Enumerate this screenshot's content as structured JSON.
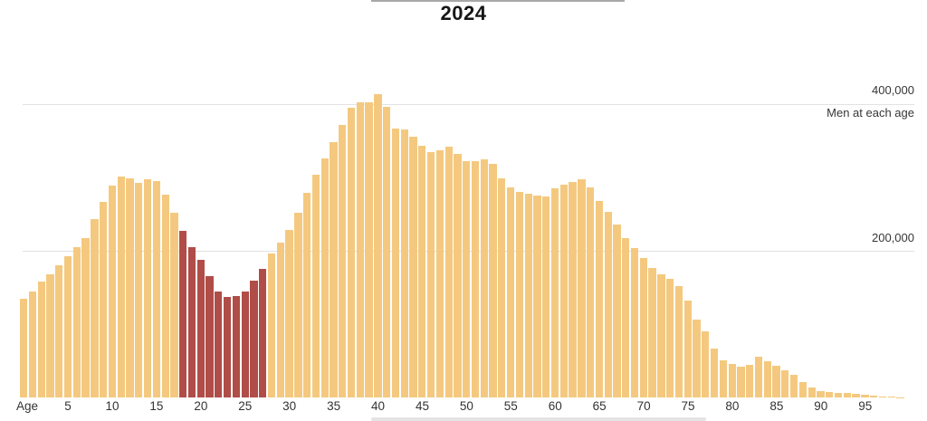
{
  "title": "2024",
  "y_axis": {
    "label_400k": "400,000",
    "label_200k": "200,000",
    "series_label": "Men at each age"
  },
  "x_axis": {
    "label": "Age",
    "ticks": [
      5,
      10,
      15,
      20,
      25,
      30,
      35,
      40,
      45,
      50,
      55,
      60,
      65,
      70,
      75,
      80,
      85,
      90,
      95
    ]
  },
  "colors": {
    "bar": "#F4C97F",
    "highlight": "#B04D49",
    "gridline": "#e2e2e2"
  },
  "chart_data": {
    "type": "bar",
    "title": "2024",
    "ylabel": "Men at each age",
    "xlabel": "Age",
    "ylim": [
      0,
      420000
    ],
    "gridlines": [
      200000,
      400000
    ],
    "grid": true,
    "legend_position": "none",
    "highlight_age_start": 18,
    "highlight_age_end": 27,
    "x": [
      0,
      1,
      2,
      3,
      4,
      5,
      6,
      7,
      8,
      9,
      10,
      11,
      12,
      13,
      14,
      15,
      16,
      17,
      18,
      19,
      20,
      21,
      22,
      23,
      24,
      25,
      26,
      27,
      28,
      29,
      30,
      31,
      32,
      33,
      34,
      35,
      36,
      37,
      38,
      39,
      40,
      41,
      42,
      43,
      44,
      45,
      46,
      47,
      48,
      49,
      50,
      51,
      52,
      53,
      54,
      55,
      56,
      57,
      58,
      59,
      60,
      61,
      62,
      63,
      64,
      65,
      66,
      67,
      68,
      69,
      70,
      71,
      72,
      73,
      74,
      75,
      76,
      77,
      78,
      79,
      80,
      81,
      82,
      83,
      84,
      85,
      86,
      87,
      88,
      89,
      90,
      91,
      92,
      93,
      94,
      95,
      96,
      97,
      98,
      99
    ],
    "values": [
      135000,
      144000,
      158000,
      168000,
      180000,
      193000,
      205000,
      217000,
      243000,
      267000,
      289000,
      301000,
      299000,
      293000,
      297000,
      295000,
      277000,
      252000,
      227000,
      205000,
      188000,
      165000,
      144000,
      137000,
      138000,
      144000,
      159000,
      175000,
      196000,
      211000,
      228000,
      252000,
      279000,
      304000,
      326000,
      348000,
      372000,
      395000,
      403000,
      403000,
      414000,
      396000,
      367000,
      365000,
      356000,
      343000,
      335000,
      337000,
      342000,
      332000,
      322000,
      322000,
      325000,
      319000,
      299000,
      287000,
      280000,
      278000,
      275000,
      274000,
      285000,
      290000,
      294000,
      298000,
      287000,
      268000,
      253000,
      236000,
      217000,
      204000,
      190000,
      176000,
      168000,
      162000,
      152000,
      132000,
      106000,
      90000,
      67000,
      51000,
      46000,
      42000,
      44000,
      55000,
      50000,
      43000,
      37000,
      31000,
      21000,
      14000,
      9000,
      7000,
      6000,
      6000,
      5000,
      4000,
      2500,
      1500,
      1000,
      500
    ]
  }
}
